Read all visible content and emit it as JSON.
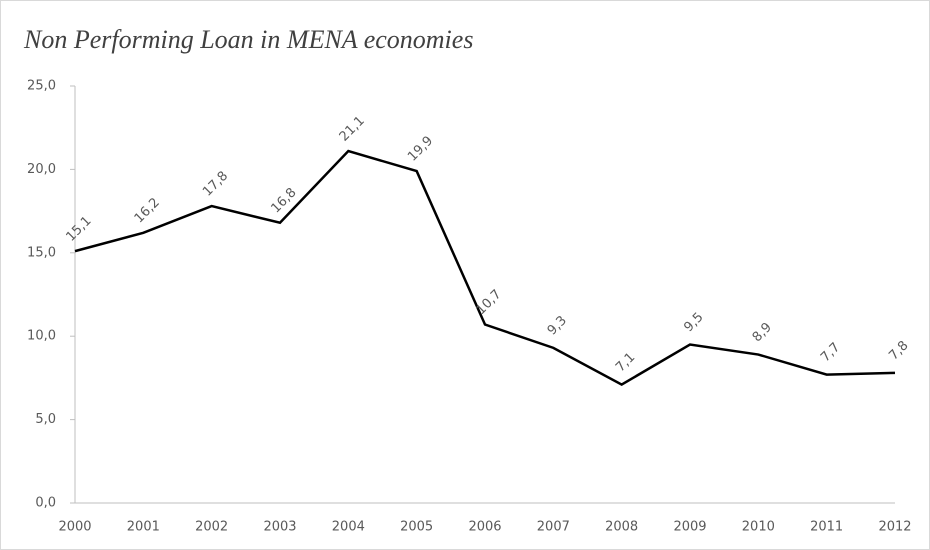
{
  "chart_data": {
    "type": "line",
    "title": "Non Performing Loan in MENA economies",
    "categories": [
      "2000",
      "2001",
      "2002",
      "2003",
      "2004",
      "2005",
      "2006",
      "2007",
      "2008",
      "2009",
      "2010",
      "2011",
      "2012"
    ],
    "series": [
      {
        "color": "#000000",
        "values": [
          15.1,
          16.2,
          17.8,
          16.8,
          21.1,
          19.9,
          10.7,
          9.3,
          7.1,
          9.5,
          8.9,
          7.7,
          7.8
        ],
        "value_labels": [
          "15,1",
          "16,2",
          "17,8",
          "16,8",
          "21,1",
          "19,9",
          "10,7",
          "9,3",
          "7,1",
          "9,5",
          "8,9",
          "7,7",
          "7,8"
        ]
      }
    ],
    "ylim": [
      0,
      25
    ],
    "yticks": [
      {
        "value": 0,
        "label": "0,0"
      },
      {
        "value": 5,
        "label": "5,0"
      },
      {
        "value": 10,
        "label": "10,0"
      },
      {
        "value": 15,
        "label": "15,0"
      },
      {
        "value": 20,
        "label": "20,0"
      },
      {
        "value": 25,
        "label": "25,0"
      }
    ],
    "grid": false
  }
}
